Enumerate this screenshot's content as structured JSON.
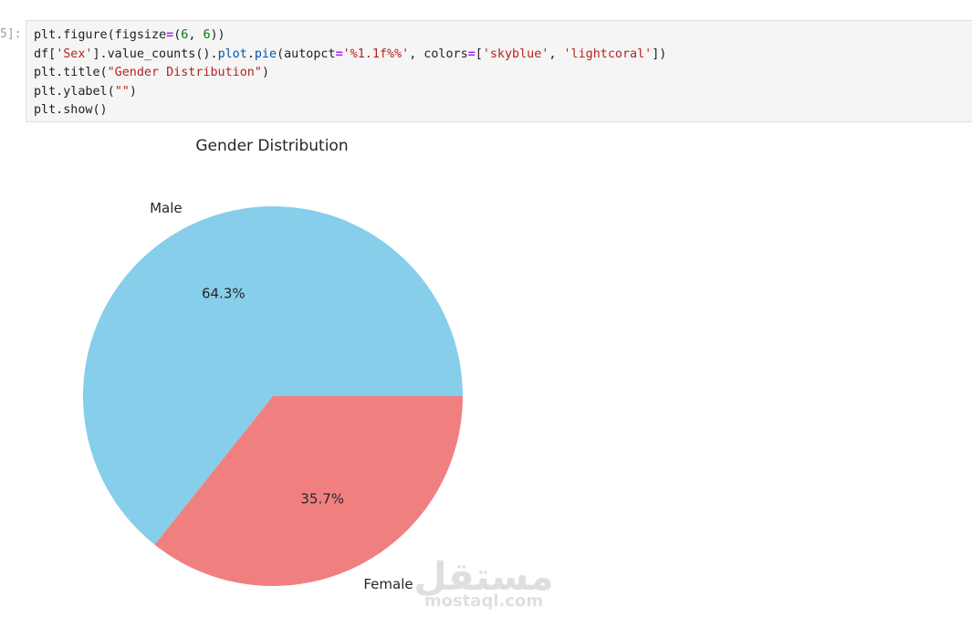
{
  "cell": {
    "prompt": "5]:",
    "code_lines": [
      [
        {
          "t": "plt.figure(figsize",
          "c": ""
        },
        {
          "t": "=",
          "c": "op"
        },
        {
          "t": "(",
          "c": ""
        },
        {
          "t": "6",
          "c": "num"
        },
        {
          "t": ", ",
          "c": ""
        },
        {
          "t": "6",
          "c": "num"
        },
        {
          "t": "))",
          "c": ""
        }
      ],
      [
        {
          "t": "df[",
          "c": ""
        },
        {
          "t": "'Sex'",
          "c": "str"
        },
        {
          "t": "].value_counts().",
          "c": ""
        },
        {
          "t": "plot",
          "c": "attr"
        },
        {
          "t": ".",
          "c": ""
        },
        {
          "t": "pie",
          "c": "attr"
        },
        {
          "t": "(autopct",
          "c": ""
        },
        {
          "t": "=",
          "c": "op"
        },
        {
          "t": "'%1.1f%%'",
          "c": "str"
        },
        {
          "t": ", colors",
          "c": ""
        },
        {
          "t": "=",
          "c": "op"
        },
        {
          "t": "[",
          "c": ""
        },
        {
          "t": "'skyblue'",
          "c": "str"
        },
        {
          "t": ", ",
          "c": ""
        },
        {
          "t": "'lightcoral'",
          "c": "str"
        },
        {
          "t": "])",
          "c": ""
        }
      ],
      [
        {
          "t": "plt.title(",
          "c": ""
        },
        {
          "t": "\"Gender Distribution\"",
          "c": "str"
        },
        {
          "t": ")",
          "c": ""
        }
      ],
      [
        {
          "t": "plt.ylabel(",
          "c": ""
        },
        {
          "t": "\"\"",
          "c": "str"
        },
        {
          "t": ")",
          "c": ""
        }
      ],
      [
        {
          "t": "plt.show()",
          "c": ""
        }
      ]
    ]
  },
  "chart_data": {
    "type": "pie",
    "title": "Gender Distribution",
    "categories": [
      "Male",
      "Female"
    ],
    "values": [
      64.3,
      35.7
    ],
    "labels": [
      "64.3%",
      "35.7%"
    ],
    "colors": [
      "#87ceeb",
      "#f08080"
    ]
  },
  "watermark": {
    "logo_text": "مستقل",
    "url_text": "mostaql.com"
  },
  "colors": {
    "cell_background": "#f5f5f5",
    "prompt": "#9e9e9e"
  }
}
